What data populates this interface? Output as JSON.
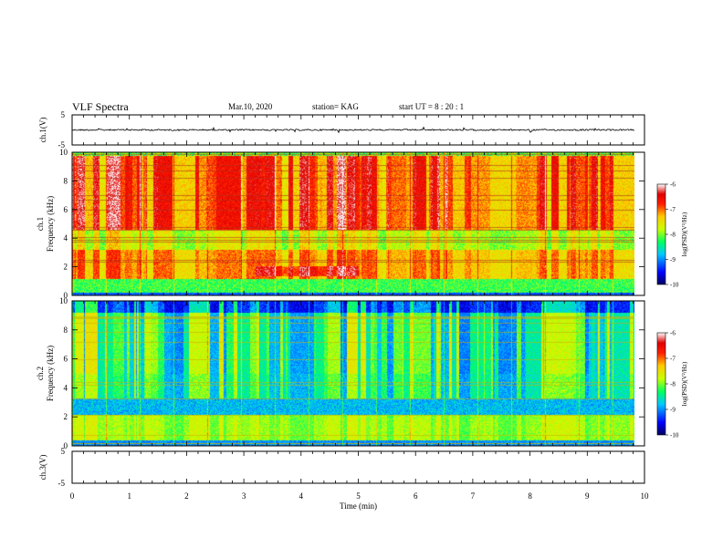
{
  "header": {
    "title": "VLF Spectra",
    "date": "Mar.10, 2020",
    "station": "station= KAG",
    "start": "start  UT =   8  : 20 : 1"
  },
  "chart_data": [
    {
      "type": "line",
      "panel": "ch1-waveform",
      "title": "",
      "xlabel": "",
      "ylabel": "ch.1(V)",
      "xlim": [
        0,
        10
      ],
      "ylim": [
        -5,
        5
      ],
      "y_ticks": [
        "5",
        "-5"
      ],
      "series": [
        {
          "x": [
            0,
            9.83
          ],
          "y": [
            0,
            0
          ]
        }
      ]
    },
    {
      "type": "heatmap",
      "panel": "ch1-spectrogram",
      "title": "",
      "xlabel": "",
      "ylabel": "ch.1 Frequency (kHz)",
      "xlim": [
        0,
        9.83
      ],
      "ylim": [
        0,
        10
      ],
      "y_ticks": [
        "0",
        "2",
        "4",
        "6",
        "8",
        "10"
      ],
      "colorbar": {
        "label": "log(PSD)(V²/Hz)",
        "range": [
          -10,
          -6
        ],
        "ticks": [
          "-6",
          "-7",
          "-8",
          "-9",
          "-10"
        ]
      }
    },
    {
      "type": "heatmap",
      "panel": "ch2-spectrogram",
      "title": "",
      "xlabel": "",
      "ylabel": "ch.2 Frequency (kHz)",
      "xlim": [
        0,
        9.83
      ],
      "ylim": [
        0,
        10
      ],
      "y_ticks": [
        "0",
        "2",
        "4",
        "6",
        "8",
        "10"
      ],
      "colorbar": {
        "label": "log(PSD)(V²/Hz)",
        "range": [
          -10,
          -6
        ],
        "ticks": [
          "-6",
          "-7",
          "-8",
          "-9",
          "-10"
        ]
      }
    },
    {
      "type": "line",
      "panel": "ch3-waveform",
      "title": "",
      "xlabel": "Time (min)",
      "ylabel": "ch.3(V)",
      "xlim": [
        0,
        10
      ],
      "ylim": [
        -5,
        5
      ],
      "y_ticks": [
        "5",
        "-5"
      ],
      "x_ticks": [
        "0",
        "1",
        "2",
        "3",
        "4",
        "5",
        "6",
        "7",
        "8",
        "9",
        "10"
      ],
      "series": []
    }
  ]
}
